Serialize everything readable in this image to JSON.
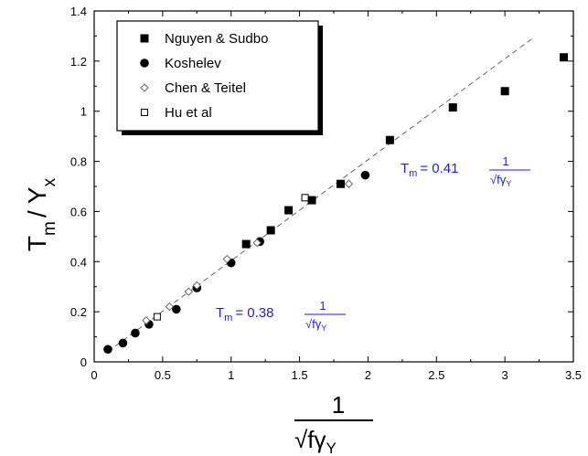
{
  "chart_data": {
    "type": "scatter",
    "xlim": [
      0,
      3.5
    ],
    "ylim": [
      0,
      1.4
    ],
    "x_ticks": [
      "0",
      "0.5",
      "1",
      "1.5",
      "2",
      "2.5",
      "3",
      "3.5"
    ],
    "y_ticks": [
      "0",
      "0.2",
      "0.4",
      "0.6",
      "0.8",
      "1",
      "1.2",
      "1.4"
    ],
    "ylabel": {
      "main": "T",
      "sub1": "m",
      "mid": "/ Y",
      "sub2": "x"
    },
    "xlabel": {
      "numerator": "1",
      "denominator": "√fγ",
      "denominator_sub": "Y"
    },
    "legend_placement": "top-left",
    "series": [
      {
        "name": "Nguyen & Sudbo",
        "marker": "filled-square",
        "points": [
          [
            1.11,
            0.47
          ],
          [
            1.29,
            0.525
          ],
          [
            1.42,
            0.605
          ],
          [
            1.59,
            0.645
          ],
          [
            1.8,
            0.71
          ],
          [
            2.16,
            0.885
          ],
          [
            2.62,
            1.015
          ],
          [
            3.0,
            1.08
          ],
          [
            3.43,
            1.215
          ]
        ]
      },
      {
        "name": "Koshelev",
        "marker": "filled-circle",
        "points": [
          [
            0.1,
            0.05
          ],
          [
            0.21,
            0.075
          ],
          [
            0.3,
            0.115
          ],
          [
            0.4,
            0.15
          ],
          [
            0.6,
            0.21
          ],
          [
            0.75,
            0.295
          ],
          [
            1.0,
            0.395
          ],
          [
            1.21,
            0.48
          ],
          [
            1.98,
            0.745
          ]
        ]
      },
      {
        "name": "Chen & Teitel",
        "marker": "open-diamond",
        "points": [
          [
            0.38,
            0.165
          ],
          [
            0.55,
            0.22
          ],
          [
            0.69,
            0.28
          ],
          [
            0.75,
            0.305
          ],
          [
            0.97,
            0.41
          ],
          [
            1.19,
            0.475
          ],
          [
            1.86,
            0.71
          ]
        ]
      },
      {
        "name": "Hu et al",
        "marker": "open-square",
        "points": [
          [
            0.46,
            0.18
          ],
          [
            1.54,
            0.655
          ]
        ]
      }
    ],
    "fit_line": {
      "style": "dashed",
      "points": [
        [
          0.1,
          0.041
        ],
        [
          3.2,
          1.29
        ]
      ]
    },
    "annotations": [
      {
        "lhs": "T",
        "lhs_sub": "m",
        "coef": "= 0.41",
        "num": "1",
        "den": "√fγ",
        "den_sub": "Y"
      },
      {
        "lhs": "T",
        "lhs_sub": "m",
        "coef": "= 0.38",
        "num": "1",
        "den": "√fγ",
        "den_sub": "Y"
      }
    ]
  }
}
